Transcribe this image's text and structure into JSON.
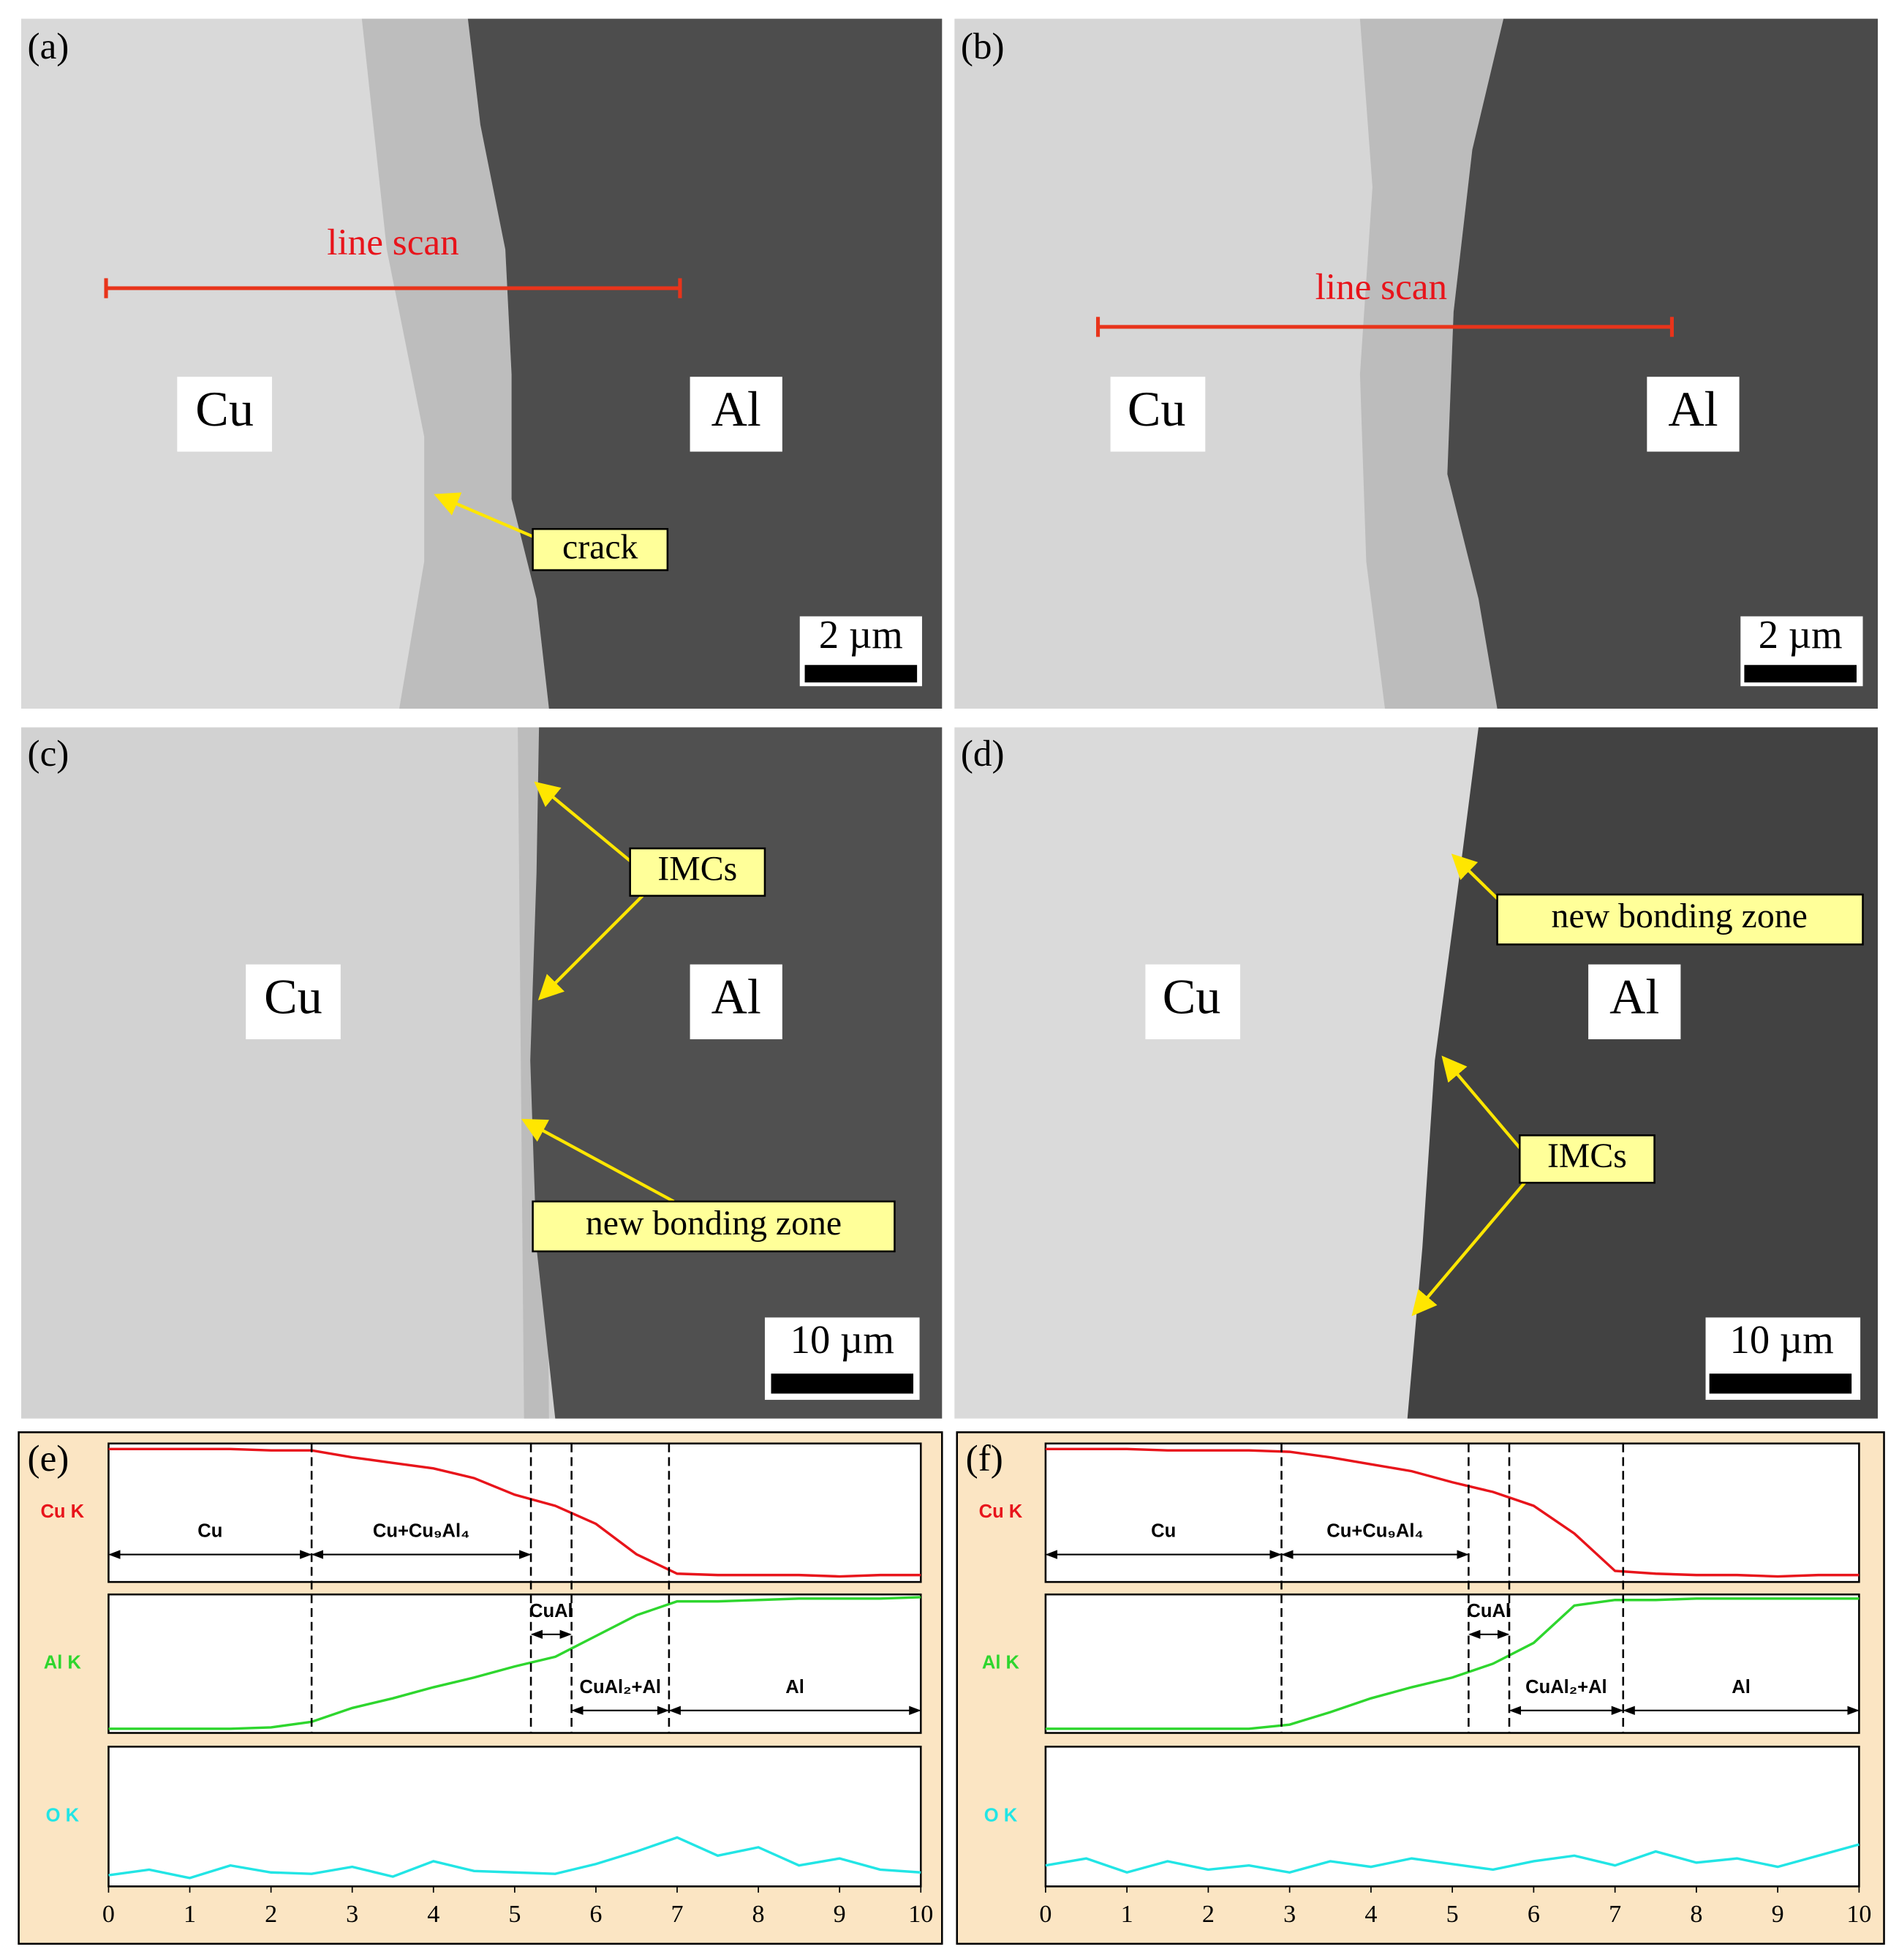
{
  "images": [
    {
      "label": "(a)",
      "line_scan": "line scan",
      "cu": "Cu",
      "al": "Al",
      "callouts": [
        "crack"
      ],
      "scale_bar": "2 µm"
    },
    {
      "label": "(b)",
      "line_scan": "line scan",
      "cu": "Cu",
      "al": "Al",
      "scale_bar": "2 µm"
    },
    {
      "label": "(c)",
      "cu": "Cu",
      "al": "Al",
      "callouts": [
        "IMCs",
        "new bonding zone"
      ],
      "scale_bar": "10 µm"
    },
    {
      "label": "(d)",
      "cu": "Cu",
      "al": "Al",
      "callouts": [
        "new bonding zone",
        "IMCs"
      ],
      "scale_bar": "10 µm"
    }
  ],
  "chart_data": [
    {
      "type": "line",
      "label": "(e)",
      "x": [
        0,
        0.5,
        1,
        1.5,
        2,
        2.5,
        3,
        3.5,
        4,
        4.5,
        5,
        5.5,
        6,
        6.5,
        7,
        7.5,
        8,
        8.5,
        9,
        9.5,
        10
      ],
      "xlim": [
        0,
        10
      ],
      "xticks": [
        0,
        1,
        2,
        3,
        4,
        5,
        6,
        7,
        8,
        9,
        10
      ],
      "ylim": [
        0,
        100
      ],
      "boundaries": [
        2.5,
        5.2,
        5.7,
        6.9
      ],
      "regions": [
        "Cu",
        "Cu+Cu₉Al₄",
        "CuAl",
        "CuAl₂+Al",
        "Al"
      ],
      "series": [
        {
          "name": "Cu K",
          "color": "#e8141b",
          "values": [
            96,
            96,
            96,
            96,
            95,
            95,
            90,
            86,
            82,
            75,
            63,
            55,
            42,
            20,
            6,
            5,
            5,
            5,
            4,
            5,
            5
          ]
        },
        {
          "name": "Al K",
          "color": "#2ed62e",
          "values": [
            3,
            3,
            3,
            3,
            4,
            8,
            18,
            25,
            33,
            40,
            48,
            55,
            70,
            85,
            95,
            95,
            96,
            97,
            97,
            97,
            98
          ]
        },
        {
          "name": "O K",
          "color": "#22e5e5",
          "values": [
            8,
            12,
            6,
            15,
            10,
            9,
            14,
            7,
            18,
            11,
            10,
            9,
            16,
            25,
            35,
            22,
            28,
            15,
            20,
            12,
            10
          ]
        }
      ]
    },
    {
      "type": "line",
      "label": "(f)",
      "x": [
        0,
        0.5,
        1,
        1.5,
        2,
        2.5,
        3,
        3.5,
        4,
        4.5,
        5,
        5.5,
        6,
        6.5,
        7,
        7.5,
        8,
        8.5,
        9,
        9.5,
        10
      ],
      "xlim": [
        0,
        10
      ],
      "xticks": [
        0,
        1,
        2,
        3,
        4,
        5,
        6,
        7,
        8,
        9,
        10
      ],
      "ylim": [
        0,
        100
      ],
      "boundaries": [
        2.9,
        5.2,
        5.7,
        7.1
      ],
      "regions": [
        "Cu",
        "Cu+Cu₉Al₄",
        "CuAl",
        "CuAl₂+Al",
        "Al"
      ],
      "series": [
        {
          "name": "Cu K",
          "color": "#e8141b",
          "values": [
            96,
            96,
            96,
            95,
            95,
            95,
            94,
            90,
            85,
            80,
            72,
            65,
            55,
            35,
            8,
            6,
            5,
            5,
            4,
            5,
            5
          ]
        },
        {
          "name": "Al K",
          "color": "#2ed62e",
          "values": [
            3,
            3,
            3,
            3,
            3,
            3,
            6,
            15,
            25,
            33,
            40,
            50,
            65,
            92,
            96,
            96,
            97,
            97,
            97,
            97,
            97
          ]
        },
        {
          "name": "O K",
          "color": "#22e5e5",
          "values": [
            15,
            20,
            10,
            18,
            12,
            15,
            10,
            18,
            14,
            20,
            16,
            12,
            18,
            22,
            15,
            25,
            17,
            20,
            14,
            22,
            30
          ]
        }
      ]
    }
  ]
}
